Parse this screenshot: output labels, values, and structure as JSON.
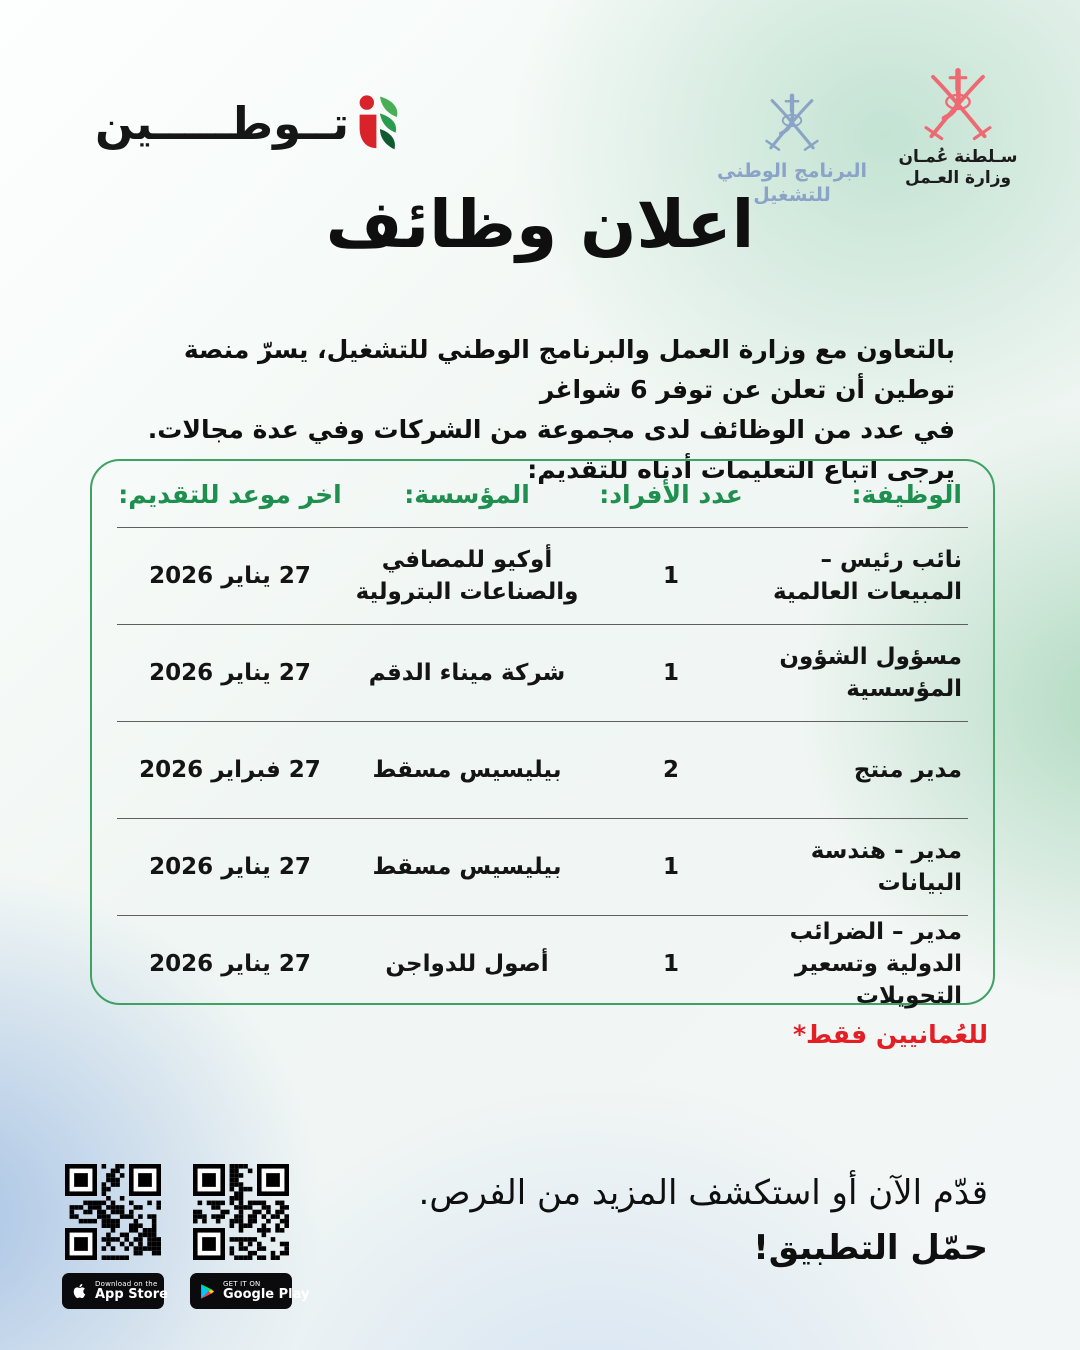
{
  "brand": {
    "wordmark": "تــوطـــــين",
    "nep": {
      "line1": "البرنامج الوطني",
      "line2": "للتشغيل"
    },
    "ministry": {
      "line1": "سـلطنة عُمـان",
      "line2": "وزارة العـمل"
    }
  },
  "title": "اعلان وظائف",
  "intro": {
    "line1": "بالتعاون مع وزارة العمل والبرنامج الوطني للتشغيل، يسرّ منصة توطين أن تعلن عن توفر 6 شواغر",
    "line2": "في عدد من الوظائف لدى مجموعة من الشركات وفي عدة مجالات.",
    "line3": "يرجى اتباع التعليمات أدناه للتقديم:"
  },
  "table": {
    "headers": {
      "job": "الوظيفة:",
      "count": "عدد الأفراد:",
      "org": "المؤسسة:",
      "deadline": "اخر موعد للتقديم:"
    },
    "rows": [
      {
        "job": [
          "نائب رئيس – المبيعات العالمية"
        ],
        "count": "1",
        "org": [
          "أوكيو للمصافي",
          "والصناعات البترولية"
        ],
        "deadline": "27 يناير 2026"
      },
      {
        "job": [
          "مسؤول الشؤون المؤسسية"
        ],
        "count": "1",
        "org": [
          "شركة ميناء الدقم"
        ],
        "deadline": "27 يناير 2026"
      },
      {
        "job": [
          "مدير منتج"
        ],
        "count": "2",
        "org": [
          "بيليسيس مسقط"
        ],
        "deadline": "27 فبراير 2026"
      },
      {
        "job": [
          "مدير - هندسة البيانات"
        ],
        "count": "1",
        "org": [
          "بيليسيس مسقط"
        ],
        "deadline": "27 يناير 2026"
      },
      {
        "job": [
          "مدير – الضرائب",
          "الدولية وتسعير التحويلات"
        ],
        "count": "1",
        "org": [
          "أصول للدواجن"
        ],
        "deadline": "27 يناير 2026"
      }
    ]
  },
  "note": "للعُمانيين فقط*",
  "cta": {
    "line1": "قدّم الآن أو استكشف المزيد من الفرص.",
    "line2": "حمّل التطبيق!"
  },
  "badges": {
    "appstore": {
      "top": "Download on the",
      "bottom": "App Store"
    },
    "googleplay": {
      "top": "GET IT ON",
      "bottom": "Google Play"
    }
  },
  "colors": {
    "green": "#1e8f4e",
    "border_green": "#3da263",
    "red": "#e31e25",
    "ministry_red": "#ee6a72",
    "nep_blue": "#8ba3c6"
  }
}
